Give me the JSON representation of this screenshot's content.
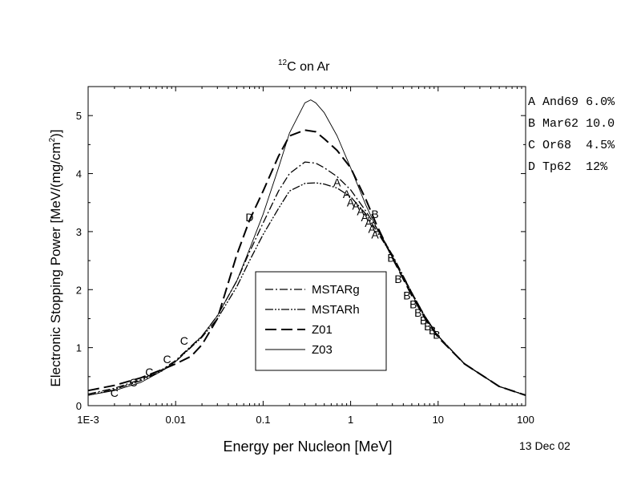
{
  "chart_data": {
    "type": "line",
    "title_sup": "12",
    "title_main": "C on Ar",
    "xlabel": "Energy per Nucleon [MeV]",
    "ylabel_main": "Electronic Stopping Power [MeV/(mg/cm",
    "ylabel_sup": "2",
    "ylabel_end": ")]",
    "date_stamp": "13 Dec 02",
    "x_scale": "log",
    "xlim": [
      0.001,
      100
    ],
    "ylim": [
      0,
      5.5
    ],
    "x_ticks": [
      {
        "value": 0.001,
        "label": "1E-3"
      },
      {
        "value": 0.01,
        "label": "0.01"
      },
      {
        "value": 0.1,
        "label": "0.1"
      },
      {
        "value": 1,
        "label": "1"
      },
      {
        "value": 10,
        "label": "10"
      },
      {
        "value": 100,
        "label": "100"
      }
    ],
    "y_ticks": [
      {
        "value": 0,
        "label": "0"
      },
      {
        "value": 1,
        "label": "1"
      },
      {
        "value": 2,
        "label": "2"
      },
      {
        "value": 3,
        "label": "3"
      },
      {
        "value": 4,
        "label": "4"
      },
      {
        "value": 5,
        "label": "5"
      }
    ],
    "series": [
      {
        "name": "MSTARg",
        "dash": "dashdot",
        "color": "#000000",
        "points": [
          [
            0.001,
            0.2
          ],
          [
            0.002,
            0.3
          ],
          [
            0.004,
            0.45
          ],
          [
            0.007,
            0.62
          ],
          [
            0.01,
            0.78
          ],
          [
            0.02,
            1.2
          ],
          [
            0.03,
            1.55
          ],
          [
            0.05,
            2.15
          ],
          [
            0.07,
            2.65
          ],
          [
            0.1,
            3.15
          ],
          [
            0.15,
            3.7
          ],
          [
            0.2,
            4.0
          ],
          [
            0.3,
            4.2
          ],
          [
            0.4,
            4.18
          ],
          [
            0.5,
            4.1
          ],
          [
            0.7,
            3.95
          ],
          [
            1.0,
            3.72
          ],
          [
            1.5,
            3.35
          ],
          [
            2,
            3.05
          ],
          [
            3,
            2.6
          ],
          [
            5,
            1.95
          ],
          [
            7,
            1.55
          ],
          [
            10,
            1.2
          ],
          [
            20,
            0.72
          ],
          [
            50,
            0.33
          ],
          [
            100,
            0.18
          ]
        ]
      },
      {
        "name": "MSTARh",
        "dash": "dashdotdot",
        "color": "#000000",
        "points": [
          [
            0.001,
            0.18
          ],
          [
            0.002,
            0.28
          ],
          [
            0.004,
            0.43
          ],
          [
            0.007,
            0.6
          ],
          [
            0.01,
            0.76
          ],
          [
            0.02,
            1.18
          ],
          [
            0.03,
            1.5
          ],
          [
            0.05,
            2.05
          ],
          [
            0.07,
            2.5
          ],
          [
            0.1,
            2.95
          ],
          [
            0.15,
            3.4
          ],
          [
            0.2,
            3.7
          ],
          [
            0.3,
            3.83
          ],
          [
            0.4,
            3.84
          ],
          [
            0.5,
            3.82
          ],
          [
            0.7,
            3.75
          ],
          [
            1.0,
            3.6
          ],
          [
            1.5,
            3.3
          ],
          [
            2,
            3.0
          ],
          [
            3,
            2.58
          ],
          [
            5,
            1.95
          ],
          [
            7,
            1.55
          ],
          [
            10,
            1.2
          ],
          [
            20,
            0.72
          ],
          [
            50,
            0.33
          ],
          [
            100,
            0.18
          ]
        ]
      },
      {
        "name": "Z01",
        "dash": "longdash",
        "color": "#000000",
        "points": [
          [
            0.001,
            0.26
          ],
          [
            0.002,
            0.35
          ],
          [
            0.004,
            0.48
          ],
          [
            0.007,
            0.62
          ],
          [
            0.01,
            0.72
          ],
          [
            0.015,
            0.85
          ],
          [
            0.02,
            1.05
          ],
          [
            0.03,
            1.5
          ],
          [
            0.05,
            2.6
          ],
          [
            0.07,
            3.2
          ],
          [
            0.1,
            3.7
          ],
          [
            0.15,
            4.3
          ],
          [
            0.2,
            4.65
          ],
          [
            0.3,
            4.75
          ],
          [
            0.4,
            4.72
          ],
          [
            0.5,
            4.6
          ],
          [
            0.7,
            4.4
          ],
          [
            1.0,
            4.1
          ],
          [
            1.5,
            3.55
          ],
          [
            2,
            3.1
          ],
          [
            3,
            2.55
          ],
          [
            5,
            1.9
          ],
          [
            7,
            1.52
          ],
          [
            10,
            1.18
          ],
          [
            20,
            0.72
          ],
          [
            50,
            0.33
          ],
          [
            100,
            0.18
          ]
        ]
      },
      {
        "name": "Z03",
        "dash": "solid",
        "color": "#000000",
        "points": [
          [
            0.001,
            0.18
          ],
          [
            0.002,
            0.26
          ],
          [
            0.004,
            0.4
          ],
          [
            0.007,
            0.6
          ],
          [
            0.01,
            0.76
          ],
          [
            0.02,
            1.2
          ],
          [
            0.03,
            1.55
          ],
          [
            0.05,
            2.15
          ],
          [
            0.07,
            2.7
          ],
          [
            0.1,
            3.3
          ],
          [
            0.15,
            4.1
          ],
          [
            0.2,
            4.7
          ],
          [
            0.3,
            5.22
          ],
          [
            0.35,
            5.27
          ],
          [
            0.4,
            5.22
          ],
          [
            0.5,
            5.05
          ],
          [
            0.7,
            4.65
          ],
          [
            1.0,
            4.1
          ],
          [
            1.5,
            3.45
          ],
          [
            2,
            3.05
          ],
          [
            3,
            2.55
          ],
          [
            5,
            1.92
          ],
          [
            7,
            1.53
          ],
          [
            10,
            1.2
          ],
          [
            20,
            0.72
          ],
          [
            50,
            0.33
          ],
          [
            100,
            0.18
          ]
        ]
      }
    ],
    "markers": [
      {
        "letter": "A",
        "points": [
          [
            0.7,
            3.85
          ],
          [
            0.9,
            3.65
          ],
          [
            1.0,
            3.5
          ],
          [
            1.15,
            3.45
          ],
          [
            1.3,
            3.35
          ],
          [
            1.45,
            3.25
          ],
          [
            1.6,
            3.15
          ],
          [
            1.75,
            3.05
          ],
          [
            1.9,
            2.95
          ]
        ]
      },
      {
        "letter": "B",
        "points": [
          [
            1.9,
            3.3
          ],
          [
            2.9,
            2.55
          ],
          [
            3.5,
            2.18
          ],
          [
            4.4,
            1.9
          ],
          [
            5.2,
            1.75
          ],
          [
            5.9,
            1.6
          ],
          [
            6.8,
            1.47
          ],
          [
            7.6,
            1.37
          ],
          [
            8.6,
            1.3
          ],
          [
            9.6,
            1.22
          ]
        ]
      },
      {
        "letter": "C",
        "points": [
          [
            0.002,
            0.22
          ],
          [
            0.0033,
            0.4
          ],
          [
            0.005,
            0.58
          ],
          [
            0.008,
            0.8
          ],
          [
            0.0125,
            1.12
          ]
        ]
      },
      {
        "letter": "D",
        "points": [
          [
            0.07,
            3.25
          ]
        ]
      }
    ],
    "legend": {
      "position": "bottom-center",
      "entries": [
        "MSTARg",
        "MSTARh",
        "Z01",
        "Z03"
      ]
    },
    "side_legend": {
      "position": "top-right-outside",
      "rows": [
        {
          "code": "A",
          "ref": "And69",
          "err": "6.0%"
        },
        {
          "code": "B",
          "ref": "Mar62",
          "err": "10.0"
        },
        {
          "code": "C",
          "ref": "Or68",
          "err": "4.5%"
        },
        {
          "code": "D",
          "ref": "Tp62",
          "err": "12%"
        }
      ]
    }
  }
}
